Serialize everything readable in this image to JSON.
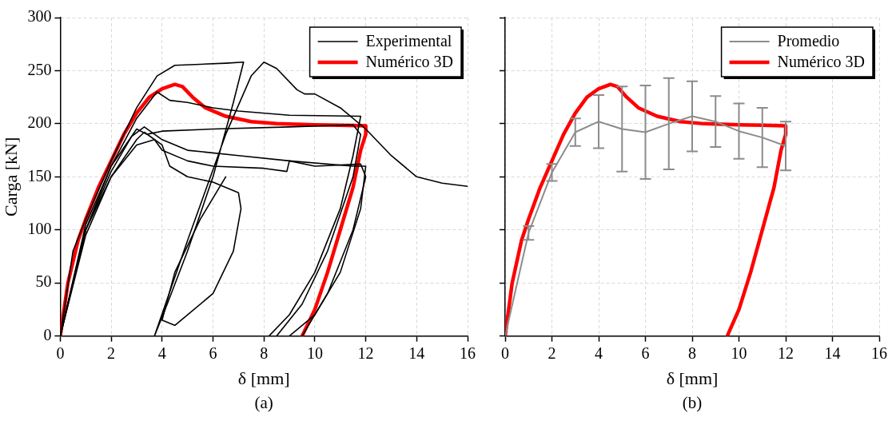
{
  "chart_data": [
    {
      "type": "line",
      "xlabel": "δ [mm]",
      "ylabel": "Carga [kN]",
      "xlim": [
        0,
        16
      ],
      "ylim": [
        0,
        300
      ],
      "xticks": [
        0,
        2,
        4,
        6,
        8,
        10,
        12,
        14,
        16
      ],
      "yticks": [
        0,
        50,
        100,
        150,
        200,
        250,
        300
      ],
      "grid": true,
      "legend": "top right",
      "marker": "none",
      "line_style": "solid",
      "annotations": [
        "(a)"
      ],
      "series": [
        {
          "name": "Experimental",
          "color": "#000000",
          "x": [
            0,
            0.5,
            1,
            2,
            3,
            3.8,
            4.5,
            5.5,
            6.5,
            7.2,
            6.8,
            6,
            5,
            4.2,
            3.7,
            5,
            6.5,
            7.5,
            8,
            8.5,
            9.3,
            9.6,
            10,
            11,
            12,
            13,
            14,
            15,
            16
          ],
          "values": [
            0,
            80,
            110,
            165,
            215,
            245,
            255,
            256,
            257,
            258,
            220,
            150,
            80,
            30,
            0,
            90,
            190,
            245,
            258,
            252,
            232,
            228,
            228,
            215,
            195,
            170,
            150,
            144,
            141
          ]
        },
        {
          "color": "#000000",
          "x": [
            0,
            1,
            2,
            3,
            3.8,
            4.3,
            5,
            6,
            7,
            9,
            11.8,
            11.5,
            11,
            10,
            9,
            8.2
          ],
          "values": [
            0,
            105,
            160,
            205,
            230,
            222,
            220,
            215,
            212,
            208,
            207,
            170,
            120,
            60,
            20,
            0
          ]
        },
        {
          "color": "#000000",
          "x": [
            0,
            1,
            2,
            3,
            3.4,
            4,
            6,
            9,
            11.5,
            11.8,
            11.5,
            10.5,
            9.5,
            8.5
          ],
          "values": [
            0,
            100,
            160,
            195,
            190,
            193,
            195,
            197,
            199,
            190,
            150,
            80,
            30,
            0
          ]
        },
        {
          "color": "#000000",
          "x": [
            0,
            1,
            2,
            2.8,
            3.3,
            4,
            5,
            7,
            9,
            11.5,
            12,
            11.8,
            11,
            10,
            9
          ],
          "values": [
            0,
            100,
            155,
            188,
            197,
            185,
            175,
            170,
            165,
            160,
            160,
            120,
            60,
            20,
            0
          ]
        },
        {
          "color": "#000000",
          "x": [
            0,
            1,
            2,
            3,
            3.3,
            4,
            4.3,
            5,
            6,
            7,
            7.1,
            6.8,
            6,
            4.5,
            4,
            4.5,
            5.5,
            6.5
          ],
          "values": [
            0,
            95,
            150,
            185,
            192,
            180,
            160,
            150,
            145,
            135,
            120,
            80,
            40,
            10,
            15,
            60,
            110,
            150
          ]
        },
        {
          "color": "#000000",
          "x": [
            0,
            1,
            2,
            3,
            3.7,
            4,
            5,
            6,
            8,
            8.9,
            9,
            10,
            11.8,
            12,
            11.5,
            10.5,
            9.5
          ],
          "values": [
            0,
            100,
            150,
            180,
            185,
            175,
            165,
            160,
            158,
            155,
            165,
            160,
            162,
            150,
            100,
            40,
            0
          ]
        },
        {
          "name": "Numérico 3D",
          "color": "#ff0000",
          "x": [
            0,
            0.3,
            0.7,
            1,
            1.5,
            2,
            2.5,
            3,
            3.5,
            4,
            4.5,
            4.8,
            5.2,
            5.7,
            6.5,
            7.5,
            8.5,
            10,
            11,
            12,
            12,
            11.8,
            11.5,
            11,
            10.5,
            10,
            9.5
          ],
          "values": [
            0,
            50,
            90,
            110,
            140,
            165,
            190,
            210,
            225,
            233,
            237,
            235,
            225,
            215,
            207,
            202,
            200,
            199,
            198.5,
            198,
            190,
            175,
            140,
            100,
            60,
            25,
            0
          ]
        }
      ]
    },
    {
      "type": "line",
      "xlabel": "δ [mm]",
      "xlim": [
        0,
        16
      ],
      "ylim": [
        0,
        300
      ],
      "xticks": [
        0,
        2,
        4,
        6,
        8,
        10,
        12,
        14,
        16
      ],
      "yticks": [
        0,
        50,
        100,
        150,
        200,
        250,
        300
      ],
      "tick_labels": "x",
      "grid": true,
      "legend": "top right",
      "marker": "none",
      "line_style": "solid",
      "annotations": [
        "(b)"
      ],
      "series": [
        {
          "name": "Promedio",
          "color": "#8c8c8c",
          "x": [
            0,
            1,
            2,
            3,
            4,
            5,
            6,
            7,
            8,
            9,
            10,
            11,
            12
          ],
          "values": [
            0,
            97,
            154,
            192,
            202,
            195,
            192,
            200,
            207,
            202,
            193,
            187,
            179
          ],
          "errors": [
            null,
            6.5,
            8,
            13,
            25,
            40,
            44,
            43,
            33,
            24,
            26,
            28,
            23
          ]
        },
        {
          "name": "Numérico 3D",
          "color": "#ff0000",
          "x": [
            0,
            0.3,
            0.7,
            1,
            1.5,
            2,
            2.5,
            3,
            3.5,
            4,
            4.5,
            4.8,
            5.2,
            5.7,
            6.5,
            7.5,
            8.5,
            10,
            11,
            12,
            12,
            11.8,
            11.5,
            11,
            10.5,
            10,
            9.5
          ],
          "values": [
            0,
            50,
            90,
            110,
            140,
            165,
            190,
            210,
            225,
            233,
            237,
            235,
            225,
            215,
            207,
            202,
            200,
            199,
            198.5,
            198,
            190,
            175,
            140,
            100,
            60,
            25,
            0
          ]
        }
      ]
    }
  ]
}
